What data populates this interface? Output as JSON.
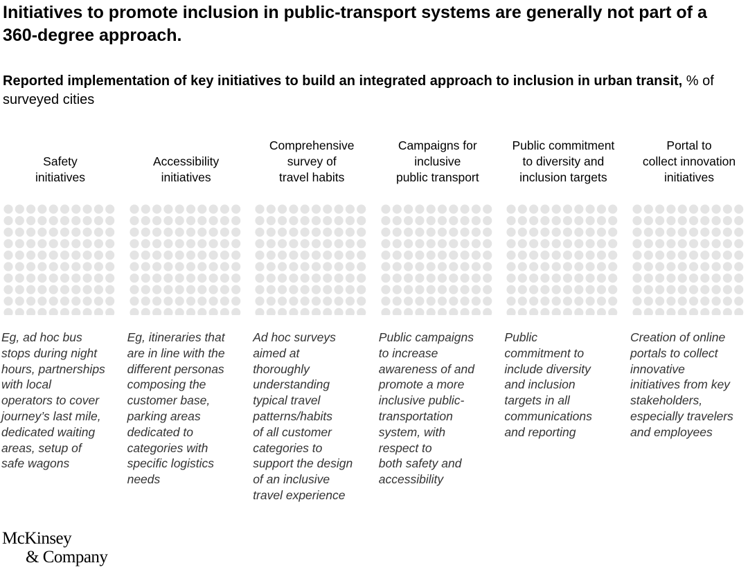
{
  "title": "Initiatives to promote inclusion in public-transport systems are generally not part of a 360-degree approach.",
  "subtitle_bold": "Reported implementation of key initiatives to build an integrated approach to inclusion in urban transit,",
  "subtitle_unit": " % of surveyed cities",
  "chart_data": {
    "type": "waffle",
    "grid": "10x10",
    "dot_color": "#e4e4e4",
    "categories": [
      {
        "label": "Safety\ninitiatives",
        "description": "Eg, ad hoc bus\nstops during night\nhours, partnerships\nwith local\noperators to cover\njourney’s last mile,\ndedicated waiting\nareas, setup of\nsafe wagons"
      },
      {
        "label": "Accessibility\ninitiatives",
        "description": "Eg, itineraries that\nare in line with the\ndifferent personas\ncomposing the\ncustomer base,\nparking areas\ndedicated to\ncategories with\nspecific logistics\nneeds"
      },
      {
        "label": "Comprehensive\nsurvey of\ntravel habits",
        "description": "Ad hoc surveys\naimed at\nthoroughly\nunderstanding\ntypical travel\npatterns/habits\nof all customer\ncategories to\nsupport the design\nof an inclusive\ntravel experience"
      },
      {
        "label": "Campaigns for\ninclusive\npublic transport",
        "description": "Public campaigns\nto increase\nawareness of and\npromote a more\ninclusive public-\ntransportation\nsystem, with\nrespect to\nboth safety and\naccessibility"
      },
      {
        "label": "Public commitment\nto diversity and\ninclusion targets",
        "description": "Public\ncommitment to\ninclude diversity\nand inclusion\ntargets in all\ncommunications\nand reporting"
      },
      {
        "label": "Portal to\ncollect innovation\ninitiatives",
        "description": "Creation of online\nportals to collect\ninnovative\ninitiatives from key\nstakeholders,\nespecially travelers\nand employees"
      }
    ]
  },
  "logo": "McKinsey\n& Company"
}
